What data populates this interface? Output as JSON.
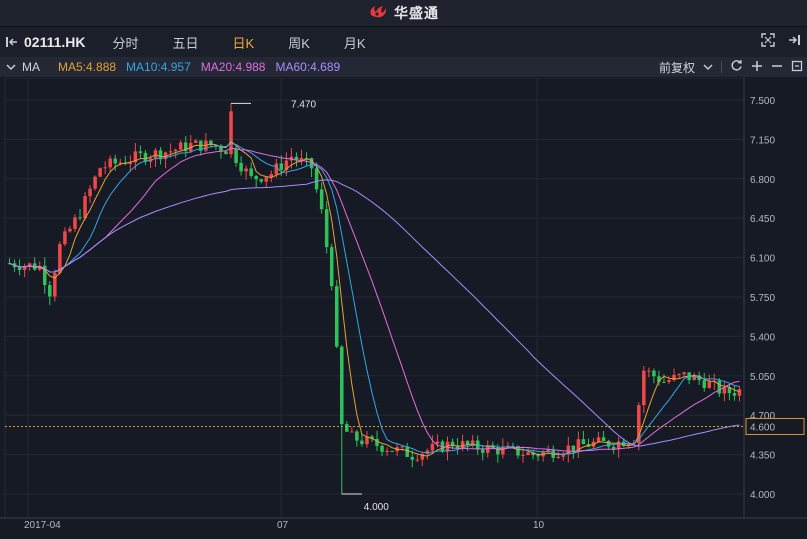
{
  "app": {
    "brand": "华盛通",
    "brand_color": "#e8383d"
  },
  "toolbar": {
    "symbol": "02111.HK",
    "tabs": [
      {
        "label": "分时",
        "active": false
      },
      {
        "label": "五日",
        "active": false
      },
      {
        "label": "日K",
        "active": true
      },
      {
        "label": "周K",
        "active": false
      },
      {
        "label": "月K",
        "active": false
      }
    ]
  },
  "indicator": {
    "name": "MA",
    "ma5": "MA5:4.888",
    "ma10": "MA10:4.957",
    "ma20": "MA20:4.988",
    "ma60": "MA60:4.689",
    "adjust": "前复权",
    "colors": {
      "ma5": "#e6a234",
      "ma10": "#35a6e8",
      "ma20": "#e06ee0",
      "ma60": "#a88cff"
    }
  },
  "chart_data": {
    "type": "candlestick",
    "y_ticks": [
      "7.500",
      "7.150",
      "6.800",
      "6.450",
      "6.100",
      "5.750",
      "5.400",
      "5.050",
      "4.700",
      "4.350",
      "4.000"
    ],
    "ylim": [
      4.0,
      7.5
    ],
    "x_ticks": [
      "2017-04",
      "07",
      "10"
    ],
    "current_price": "4.600",
    "high_label": "7.470",
    "low_label": "4.000",
    "grid": true,
    "up_color": "#f04848",
    "down_color": "#2ec25b",
    "ma_values": {
      "ma5": 4.888,
      "ma10": 4.957,
      "ma20": 4.988,
      "ma60": 4.689
    }
  }
}
